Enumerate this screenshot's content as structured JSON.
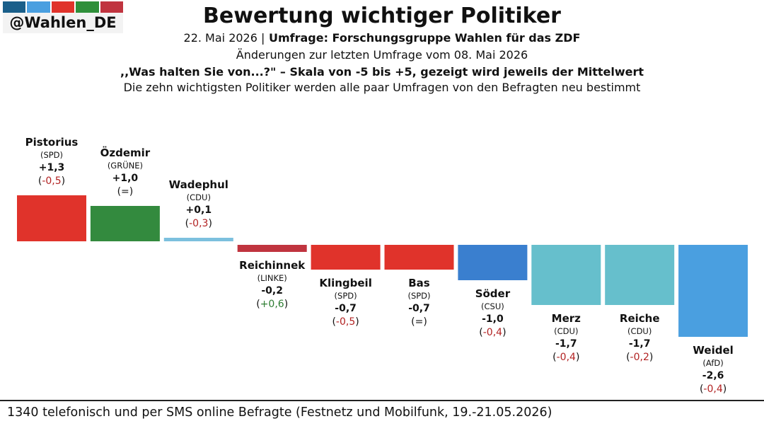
{
  "brand": {
    "handle": "@Wahlen_DE",
    "strip_colors": [
      "#1a5f8a",
      "#4a9fe0",
      "#e0332b",
      "#2f8f3a",
      "#c0343f"
    ]
  },
  "header": {
    "title": "Bewertung wichtiger Politiker",
    "date_line": "22. Mai 2026 | Umfrage: Forschungsgruppe Wahlen für das ZDF",
    "change_line": "Änderungen zur letzten Umfrage vom 08. Mai 2026",
    "question_line": ",,Was halten Sie von...?\" – Skala von -5 bis +5, gezeigt wird jeweils der Mittelwert",
    "note_line": "Die zehn wichtigsten Politiker werden alle paar Umfragen von den Befragten neu bestimmt"
  },
  "chart_data": {
    "type": "bar",
    "scale": [
      -5,
      5
    ],
    "categories": [
      "Pistorius",
      "Özdemir",
      "Wadephul",
      "Reichinnek",
      "Klingbeil",
      "Bas",
      "Söder",
      "Merz",
      "Reiche",
      "Weidel"
    ],
    "parties": [
      "(SPD)",
      "(GRÜNE)",
      "(CDU)",
      "(LINKE)",
      "(SPD)",
      "(SPD)",
      "(CSU)",
      "(CDU)",
      "(CDU)",
      "(AfD)"
    ],
    "values": [
      1.3,
      1.0,
      0.1,
      -0.2,
      -0.7,
      -0.7,
      -1.0,
      -1.7,
      -1.7,
      -2.6
    ],
    "value_labels": [
      "+1,3",
      "+1,0",
      "+0,1",
      "-0,2",
      "-0,7",
      "-0,7",
      "-1,0",
      "-1,7",
      "-1,7",
      "-2,6"
    ],
    "change_labels": [
      "(-0,5)",
      "(=)",
      "(-0,3)",
      "(+0,6)",
      "(-0,5)",
      "(=)",
      "(-0,4)",
      "(-0,4)",
      "(-0,2)",
      "(-0,4)"
    ],
    "change_direction": [
      "down",
      "same",
      "down",
      "up",
      "down",
      "same",
      "down",
      "down",
      "down",
      "down"
    ],
    "bar_colors": [
      "#e0332b",
      "#338a3e",
      "#7cc0de",
      "#c0343f",
      "#e0332b",
      "#e0332b",
      "#3a7fcf",
      "#66bfcc",
      "#66bfcc",
      "#4a9fe0"
    ],
    "change_colors": {
      "down": "#b22222",
      "up": "#2e7d32",
      "same": "#111111"
    }
  },
  "footer": {
    "text": "1340 telefonisch und per SMS online Befragte (Festnetz und Mobilfunk, 19.-21.05.2026)"
  }
}
